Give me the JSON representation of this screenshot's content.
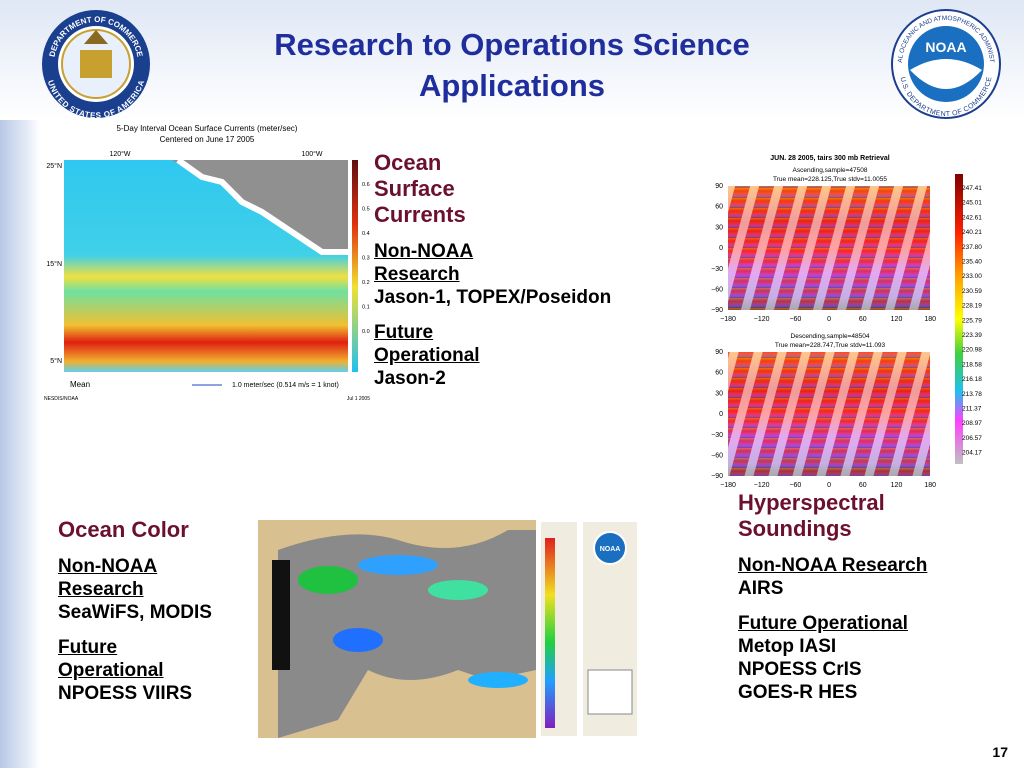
{
  "header": {
    "title": "Research to Operations Science Applications",
    "page_number": "17"
  },
  "logos": {
    "commerce": {
      "top": "DEPARTMENT OF COMMERCE",
      "bottom": "UNITED STATES OF AMERICA"
    },
    "noaa": {
      "name": "NOAA",
      "ring": "NATIONAL OCEANIC AND ATMOSPHERIC ADMINISTRATION",
      "bottom": "U.S. DEPARTMENT OF COMMERCE"
    }
  },
  "sections": [
    {
      "title": "Ocean Surface Currents",
      "groups": [
        {
          "heading": "Non-NOAA Research",
          "items": [
            "Jason-1, TOPEX/Poseidon"
          ]
        },
        {
          "heading": "Future Operational",
          "items": [
            "Jason-2"
          ]
        }
      ]
    },
    {
      "title": "Hyperspectral Soundings",
      "groups": [
        {
          "heading": "Non-NOAA Research",
          "items": [
            "AIRS"
          ]
        },
        {
          "heading": "Future Operational",
          "items": [
            "Metop IASI",
            "NPOESS CrIS",
            "GOES-R HES"
          ]
        }
      ]
    },
    {
      "title": "Ocean Color",
      "groups": [
        {
          "heading": "Non-NOAA Research",
          "items": [
            "SeaWiFS, MODIS"
          ]
        },
        {
          "heading": "Future Operational",
          "items": [
            "NPOESS VIIRS"
          ]
        }
      ]
    }
  ],
  "figures": {
    "currents": {
      "title": "5-Day Interval Ocean Surface Currents (meter/sec)",
      "subtitle": "Centered on June 17 2005",
      "lon_labels": [
        "120°W",
        "100°W"
      ],
      "lat_labels": [
        "25°N",
        "15°N",
        "5°N"
      ],
      "colorbar": [
        "0.6",
        "0.5",
        "0.4",
        "0.3",
        "0.2",
        "0.1",
        "0.0"
      ],
      "legend": "Mean",
      "scale": "1.0 meter/sec (0.514 m/s = 1 knot)",
      "credit": "NESDIS/NOAA",
      "date": "Jul 1 2005"
    },
    "soundings": {
      "title": "JUN. 28 2005, tairs 300 mb Retrieval",
      "panels": [
        {
          "line1": "Ascending,sample=47508",
          "line2": "True mean=228.125,True stdv=11.0055"
        },
        {
          "line1": "Descending,sample=48504",
          "line2": "True mean=228.747,True stdv=11.093"
        }
      ],
      "yticks": [
        "90",
        "60",
        "30",
        "0",
        "−30",
        "−60",
        "−90"
      ],
      "xticks": [
        "−180",
        "−120",
        "−60",
        "0",
        "60",
        "120",
        "180"
      ],
      "colorbar": [
        "247.41",
        "245.01",
        "242.61",
        "240.21",
        "237.80",
        "235.40",
        "233.00",
        "230.59",
        "228.19",
        "225.79",
        "223.39",
        "220.98",
        "218.58",
        "216.18",
        "213.78",
        "211.37",
        "208.97",
        "206.57",
        "204.17"
      ]
    },
    "ocean_color": {
      "noaa": "NOAA"
    }
  }
}
